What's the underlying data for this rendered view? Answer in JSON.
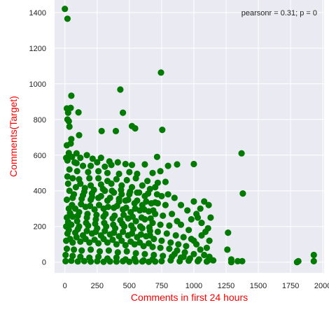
{
  "chart_data": {
    "type": "scatter",
    "xlabel": "Comments in first 24 hours",
    "ylabel": "Comments(Target)",
    "annotation": "pearsonr = 0.31; p = 0",
    "xlim": [
      -80,
      2010
    ],
    "ylim": [
      -60,
      1470
    ],
    "xticks": [
      0,
      250,
      500,
      750,
      1000,
      1250,
      1500,
      1750,
      2000
    ],
    "yticks": [
      0,
      200,
      400,
      600,
      800,
      1000,
      1200,
      1400
    ],
    "grid": true,
    "colors": {
      "point": "#007a00",
      "label": "#ff0000",
      "axes_bg": "#eaeaf2",
      "grid": "#ffffff",
      "tick_text": "#222222"
    },
    "points": [
      [
        0,
        1420
      ],
      [
        20,
        1365
      ],
      [
        745,
        1063
      ],
      [
        430,
        968
      ],
      [
        50,
        933
      ],
      [
        45,
        865
      ],
      [
        15,
        862
      ],
      [
        25,
        838
      ],
      [
        105,
        840
      ],
      [
        450,
        838
      ],
      [
        20,
        800
      ],
      [
        30,
        790
      ],
      [
        35,
        760
      ],
      [
        520,
        763
      ],
      [
        545,
        750
      ],
      [
        755,
        742
      ],
      [
        285,
        735
      ],
      [
        395,
        735
      ],
      [
        110,
        712
      ],
      [
        50,
        690
      ],
      [
        45,
        665
      ],
      [
        15,
        655
      ],
      [
        90,
        610
      ],
      [
        30,
        612
      ],
      [
        1370,
        610
      ],
      [
        55,
        590
      ],
      [
        10,
        585
      ],
      [
        120,
        585
      ],
      [
        170,
        600
      ],
      [
        215,
        580
      ],
      [
        280,
        585
      ],
      [
        345,
        565
      ],
      [
        20,
        570
      ],
      [
        75,
        560
      ],
      [
        90,
        555
      ],
      [
        140,
        540
      ],
      [
        200,
        540
      ],
      [
        250,
        560
      ],
      [
        310,
        535
      ],
      [
        360,
        545
      ],
      [
        410,
        560
      ],
      [
        470,
        550
      ],
      [
        520,
        545
      ],
      [
        620,
        548
      ],
      [
        715,
        590
      ],
      [
        800,
        540
      ],
      [
        870,
        548
      ],
      [
        1000,
        550
      ],
      [
        35,
        520
      ],
      [
        95,
        510
      ],
      [
        180,
        505
      ],
      [
        260,
        510
      ],
      [
        330,
        500
      ],
      [
        420,
        495
      ],
      [
        500,
        505
      ],
      [
        560,
        495
      ],
      [
        680,
        500
      ],
      [
        740,
        510
      ],
      [
        20,
        480
      ],
      [
        60,
        470
      ],
      [
        110,
        465
      ],
      [
        190,
        470
      ],
      [
        260,
        470
      ],
      [
        330,
        455
      ],
      [
        400,
        465
      ],
      [
        480,
        460
      ],
      [
        550,
        470
      ],
      [
        640,
        455
      ],
      [
        720,
        445
      ],
      [
        780,
        450
      ],
      [
        25,
        440
      ],
      [
        120,
        440
      ],
      [
        200,
        430
      ],
      [
        280,
        435
      ],
      [
        360,
        440
      ],
      [
        440,
        430
      ],
      [
        520,
        420
      ],
      [
        600,
        430
      ],
      [
        660,
        410
      ],
      [
        700,
        420
      ],
      [
        800,
        380
      ],
      [
        1380,
        385
      ],
      [
        35,
        400
      ],
      [
        150,
        395
      ],
      [
        210,
        385
      ],
      [
        310,
        400
      ],
      [
        380,
        390
      ],
      [
        440,
        380
      ],
      [
        500,
        380
      ],
      [
        560,
        390
      ],
      [
        620,
        370
      ],
      [
        750,
        370
      ],
      [
        850,
        360
      ],
      [
        1000,
        340
      ],
      [
        1050,
        300
      ],
      [
        1115,
        320
      ],
      [
        15,
        350
      ],
      [
        60,
        360
      ],
      [
        130,
        355
      ],
      [
        200,
        350
      ],
      [
        260,
        360
      ],
      [
        330,
        345
      ],
      [
        420,
        340
      ],
      [
        470,
        345
      ],
      [
        540,
        330
      ],
      [
        600,
        320
      ],
      [
        670,
        330
      ],
      [
        720,
        330
      ],
      [
        780,
        320
      ],
      [
        900,
        320
      ],
      [
        950,
        290
      ],
      [
        1080,
        340
      ],
      [
        1130,
        250
      ],
      [
        30,
        300
      ],
      [
        80,
        300
      ],
      [
        160,
        310
      ],
      [
        230,
        295
      ],
      [
        300,
        300
      ],
      [
        380,
        305
      ],
      [
        450,
        295
      ],
      [
        510,
        280
      ],
      [
        580,
        290
      ],
      [
        650,
        285
      ],
      [
        700,
        270
      ],
      [
        760,
        260
      ],
      [
        830,
        270
      ],
      [
        870,
        230
      ],
      [
        980,
        240
      ],
      [
        1030,
        250
      ],
      [
        1110,
        190
      ],
      [
        1265,
        165
      ],
      [
        15,
        250
      ],
      [
        60,
        255
      ],
      [
        100,
        260
      ],
      [
        170,
        250
      ],
      [
        240,
        240
      ],
      [
        300,
        255
      ],
      [
        370,
        245
      ],
      [
        430,
        235
      ],
      [
        490,
        245
      ],
      [
        550,
        230
      ],
      [
        620,
        240
      ],
      [
        680,
        220
      ],
      [
        740,
        210
      ],
      [
        810,
        205
      ],
      [
        900,
        210
      ],
      [
        960,
        180
      ],
      [
        1060,
        150
      ],
      [
        10,
        200
      ],
      [
        50,
        210
      ],
      [
        110,
        200
      ],
      [
        180,
        205
      ],
      [
        250,
        190
      ],
      [
        320,
        200
      ],
      [
        390,
        190
      ],
      [
        460,
        200
      ],
      [
        530,
        185
      ],
      [
        600,
        190
      ],
      [
        660,
        175
      ],
      [
        720,
        170
      ],
      [
        790,
        160
      ],
      [
        860,
        150
      ],
      [
        920,
        140
      ],
      [
        1000,
        120
      ],
      [
        1120,
        120
      ],
      [
        20,
        160
      ],
      [
        80,
        165
      ],
      [
        140,
        150
      ],
      [
        210,
        160
      ],
      [
        280,
        150
      ],
      [
        350,
        155
      ],
      [
        420,
        145
      ],
      [
        490,
        150
      ],
      [
        560,
        140
      ],
      [
        630,
        145
      ],
      [
        690,
        130
      ],
      [
        750,
        120
      ],
      [
        820,
        110
      ],
      [
        880,
        100
      ],
      [
        940,
        90
      ],
      [
        1020,
        100
      ],
      [
        1100,
        80
      ],
      [
        10,
        120
      ],
      [
        60,
        110
      ],
      [
        120,
        115
      ],
      [
        190,
        110
      ],
      [
        260,
        105
      ],
      [
        330,
        110
      ],
      [
        400,
        100
      ],
      [
        470,
        95
      ],
      [
        540,
        100
      ],
      [
        610,
        90
      ],
      [
        680,
        85
      ],
      [
        740,
        80
      ],
      [
        810,
        75
      ],
      [
        870,
        65
      ],
      [
        930,
        55
      ],
      [
        1000,
        45
      ],
      [
        1080,
        40
      ],
      [
        1260,
        70
      ],
      [
        15,
        75
      ],
      [
        70,
        70
      ],
      [
        130,
        65
      ],
      [
        200,
        70
      ],
      [
        270,
        60
      ],
      [
        340,
        65
      ],
      [
        410,
        55
      ],
      [
        480,
        60
      ],
      [
        550,
        50
      ],
      [
        620,
        45
      ],
      [
        690,
        40
      ],
      [
        760,
        35
      ],
      [
        830,
        30
      ],
      [
        900,
        25
      ],
      [
        970,
        20
      ],
      [
        1040,
        15
      ],
      [
        1110,
        10
      ],
      [
        5,
        40
      ],
      [
        60,
        35
      ],
      [
        120,
        30
      ],
      [
        190,
        25
      ],
      [
        260,
        30
      ],
      [
        330,
        20
      ],
      [
        400,
        25
      ],
      [
        470,
        15
      ],
      [
        540,
        20
      ],
      [
        610,
        10
      ],
      [
        680,
        15
      ],
      [
        750,
        5
      ],
      [
        820,
        10
      ],
      [
        890,
        5
      ],
      [
        960,
        8
      ],
      [
        1030,
        5
      ],
      [
        1100,
        3
      ],
      [
        1290,
        15
      ],
      [
        1290,
        0
      ],
      [
        1340,
        5
      ],
      [
        1375,
        5
      ],
      [
        1810,
        5
      ],
      [
        1800,
        0
      ],
      [
        1930,
        40
      ],
      [
        1930,
        5
      ],
      [
        5,
        5
      ],
      [
        50,
        8
      ],
      [
        100,
        4
      ],
      [
        150,
        6
      ],
      [
        200,
        3
      ],
      [
        250,
        5
      ],
      [
        300,
        2
      ],
      [
        350,
        4
      ],
      [
        400,
        3
      ],
      [
        450,
        5
      ],
      [
        500,
        2
      ],
      [
        550,
        3
      ],
      [
        600,
        4
      ],
      [
        650,
        2
      ],
      [
        700,
        3
      ],
      [
        40,
        130
      ],
      [
        90,
        140
      ],
      [
        160,
        130
      ],
      [
        230,
        125
      ],
      [
        300,
        130
      ],
      [
        370,
        125
      ],
      [
        440,
        120
      ],
      [
        510,
        115
      ],
      [
        580,
        110
      ],
      [
        650,
        105
      ],
      [
        30,
        180
      ],
      [
        100,
        185
      ],
      [
        170,
        175
      ],
      [
        240,
        170
      ],
      [
        310,
        175
      ],
      [
        380,
        165
      ],
      [
        450,
        170
      ],
      [
        520,
        160
      ],
      [
        590,
        155
      ],
      [
        660,
        150
      ],
      [
        25,
        225
      ],
      [
        95,
        230
      ],
      [
        165,
        220
      ],
      [
        235,
        215
      ],
      [
        305,
        220
      ],
      [
        375,
        210
      ],
      [
        445,
        215
      ],
      [
        515,
        205
      ],
      [
        585,
        200
      ],
      [
        655,
        195
      ],
      [
        40,
        275
      ],
      [
        110,
        280
      ],
      [
        175,
        270
      ],
      [
        245,
        265
      ],
      [
        315,
        270
      ],
      [
        385,
        260
      ],
      [
        455,
        265
      ],
      [
        525,
        255
      ],
      [
        595,
        250
      ],
      [
        665,
        245
      ],
      [
        55,
        320
      ],
      [
        125,
        325
      ],
      [
        195,
        315
      ],
      [
        265,
        320
      ],
      [
        335,
        310
      ],
      [
        405,
        315
      ],
      [
        475,
        305
      ],
      [
        545,
        300
      ],
      [
        615,
        295
      ],
      [
        685,
        290
      ],
      [
        70,
        380
      ],
      [
        140,
        375
      ],
      [
        210,
        365
      ],
      [
        280,
        370
      ],
      [
        350,
        360
      ],
      [
        420,
        355
      ],
      [
        490,
        350
      ],
      [
        560,
        345
      ],
      [
        630,
        340
      ],
      [
        700,
        335
      ],
      [
        85,
        420
      ],
      [
        155,
        415
      ],
      [
        225,
        405
      ],
      [
        295,
        410
      ],
      [
        365,
        400
      ],
      [
        435,
        405
      ],
      [
        505,
        395
      ],
      [
        575,
        390
      ],
      [
        645,
        385
      ],
      [
        715,
        380
      ],
      [
        1020,
        270
      ],
      [
        1060,
        220
      ],
      [
        1090,
        170
      ],
      [
        980,
        130
      ],
      [
        1050,
        70
      ],
      [
        1120,
        30
      ],
      [
        1150,
        10
      ],
      [
        850,
        45
      ],
      [
        920,
        30
      ]
    ]
  }
}
